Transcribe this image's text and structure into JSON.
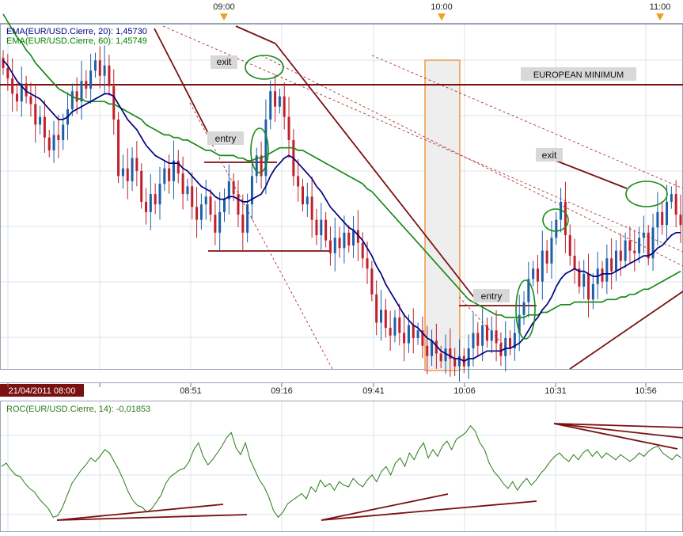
{
  "chart_data": [
    {
      "type": "candlestick",
      "title": "",
      "instrument": "EUR/USD",
      "top_time_labels": [
        "09:00",
        "10:00",
        "11:00"
      ],
      "x_tick_labels": [
        "08:51",
        "09:16",
        "09:41",
        "10:06",
        "10:31",
        "10:56"
      ],
      "date_label": "21/04/2011 08:00",
      "legend": [
        {
          "text": "EMA(EUR/USD.Cierre, 20): 1,45730",
          "color": "#000080"
        },
        {
          "text": "EMA(EUR/USD.Cierre, 60): 1,45749",
          "color": "#008000"
        }
      ],
      "level_label": "EUROPEAN MINIMUM",
      "annotations": [
        "exit",
        "entry",
        "entry",
        "exit"
      ],
      "colors": {
        "up": "#1c5fa8",
        "down": "#c0202a",
        "ema20": "#000080",
        "ema60": "#1a8a1a",
        "lines": "#7b1010",
        "marker": "#f0a020",
        "highlight": "#f08a30"
      },
      "grid": true,
      "closes": [
        1.4612,
        1.4608,
        1.4602,
        1.4599,
        1.4606,
        1.4601,
        1.4598,
        1.459,
        1.4593,
        1.4585,
        1.458,
        1.4586,
        1.4584,
        1.459,
        1.4596,
        1.4603,
        1.4599,
        1.4607,
        1.4604,
        1.4611,
        1.4615,
        1.4609,
        1.4613,
        1.4605,
        1.4592,
        1.457,
        1.4573,
        1.4568,
        1.4577,
        1.4572,
        1.456,
        1.4556,
        1.4563,
        1.4559,
        1.4567,
        1.4573,
        1.4568,
        1.4576,
        1.4571,
        1.4563,
        1.4566,
        1.4558,
        1.4553,
        1.4559,
        1.4562,
        1.4555,
        1.4548,
        1.4556,
        1.4561,
        1.4568,
        1.4563,
        1.4555,
        1.4548,
        1.4559,
        1.457,
        1.4578,
        1.457,
        1.4592,
        1.4603,
        1.4597,
        1.4601,
        1.4593,
        1.4584,
        1.457,
        1.4566,
        1.4559,
        1.4562,
        1.4553,
        1.4547,
        1.4553,
        1.4545,
        1.454,
        1.4546,
        1.4542,
        1.4548,
        1.4543,
        1.4549,
        1.4544,
        1.4538,
        1.4534,
        1.4524,
        1.4513,
        1.4518,
        1.4511,
        1.4508,
        1.4515,
        1.4509,
        1.4505,
        1.4512,
        1.4507,
        1.451,
        1.4504,
        1.45,
        1.4506,
        1.4501,
        1.4498,
        1.4503,
        1.4499,
        1.4496,
        1.45,
        1.4496,
        1.4503,
        1.4509,
        1.4504,
        1.4512,
        1.4506,
        1.451,
        1.4505,
        1.45,
        1.4507,
        1.4503,
        1.4509,
        1.4516,
        1.4521,
        1.453,
        1.4534,
        1.4529,
        1.4541,
        1.4536,
        1.4546,
        1.4553,
        1.456,
        1.4547,
        1.4539,
        1.4534,
        1.4527,
        1.4532,
        1.4522,
        1.4528,
        1.4534,
        1.4529,
        1.4538,
        1.4533,
        1.4541,
        1.4537,
        1.4545,
        1.4541,
        1.454,
        1.4546,
        1.4548,
        1.4538,
        1.455,
        1.4556,
        1.4551,
        1.456,
        1.4563,
        1.4555,
        1.4551
      ],
      "ema20": [
        1.4615,
        1.4613,
        1.461,
        1.4607,
        1.4605,
        1.4603,
        1.4602,
        1.4601,
        1.46,
        1.4598,
        1.4596,
        1.4594,
        1.4592,
        1.4592,
        1.4593,
        1.4595,
        1.4596,
        1.4597,
        1.4598,
        1.4599,
        1.46,
        1.4601,
        1.4602,
        1.4602,
        1.4601,
        1.4598,
        1.4595,
        1.4592,
        1.459,
        1.4588,
        1.4585,
        1.4582,
        1.458,
        1.4578,
        1.4577,
        1.4576,
        1.4575,
        1.4575,
        1.4575,
        1.4573,
        1.4572,
        1.457,
        1.4568,
        1.4566,
        1.4565,
        1.4564,
        1.4562,
        1.4561,
        1.4561,
        1.4562,
        1.4562,
        1.4561,
        1.456,
        1.456,
        1.4561,
        1.4562,
        1.4563,
        1.4566,
        1.457,
        1.4573,
        1.4575,
        1.4577,
        1.4578,
        1.4577,
        1.4575,
        1.4573,
        1.4571,
        1.4569,
        1.4566,
        1.4564,
        1.4561,
        1.4558,
        1.4556,
        1.4554,
        1.4552,
        1.455,
        1.4549,
        1.4547,
        1.4545,
        1.4542,
        1.4539,
        1.4535,
        1.4532,
        1.4528,
        1.4525,
        1.4522,
        1.4519,
        1.4516,
        1.4514,
        1.4512,
        1.4511,
        1.4509,
        1.4507,
        1.4506,
        1.4504,
        1.4502,
        1.4501,
        1.45,
        1.4499,
        1.4499,
        1.4498,
        1.4499,
        1.4499,
        1.45,
        1.4501,
        1.4502,
        1.4502,
        1.4502,
        1.4502,
        1.4503,
        1.4503,
        1.4504,
        1.4505,
        1.4507,
        1.451,
        1.4513,
        1.4515,
        1.4518,
        1.452,
        1.4523,
        1.4527,
        1.453,
        1.4532,
        1.4533,
        1.4534,
        1.4533,
        1.4533,
        1.4532,
        1.4531,
        1.4531,
        1.4532,
        1.4532,
        1.4532,
        1.4533,
        1.4534,
        1.4535,
        1.4536,
        1.4537,
        1.4538,
        1.4539,
        1.4539,
        1.454,
        1.4542,
        1.4543,
        1.4545,
        1.4547,
        1.4548,
        1.4548
      ],
      "ema60": [
        1.4633,
        1.463,
        1.4627,
        1.4624,
        1.4622,
        1.4619,
        1.4617,
        1.4614,
        1.4612,
        1.461,
        1.4608,
        1.4606,
        1.4604,
        1.4603,
        1.4602,
        1.4601,
        1.46,
        1.46,
        1.4599,
        1.4599,
        1.4599,
        1.4599,
        1.4599,
        1.4598,
        1.4598,
        1.4597,
        1.4596,
        1.4595,
        1.4594,
        1.4593,
        1.4592,
        1.459,
        1.4589,
        1.4588,
        1.4587,
        1.4586,
        1.4586,
        1.4585,
        1.4585,
        1.4584,
        1.4584,
        1.4583,
        1.4582,
        1.4581,
        1.458,
        1.458,
        1.4579,
        1.4578,
        1.4578,
        1.4578,
        1.4578,
        1.4577,
        1.4577,
        1.4576,
        1.4576,
        1.4577,
        1.4577,
        1.4578,
        1.4579,
        1.458,
        1.4581,
        1.4581,
        1.4581,
        1.4581,
        1.458,
        1.458,
        1.4579,
        1.4578,
        1.4577,
        1.4576,
        1.4575,
        1.4574,
        1.4573,
        1.4572,
        1.4571,
        1.457,
        1.4569,
        1.4568,
        1.4567,
        1.4565,
        1.4564,
        1.4562,
        1.456,
        1.4558,
        1.4556,
        1.4554,
        1.4552,
        1.455,
        1.4548,
        1.4546,
        1.4544,
        1.4542,
        1.454,
        1.4538,
        1.4536,
        1.4534,
        1.4532,
        1.453,
        1.4528,
        1.4526,
        1.4524,
        1.4522,
        1.4521,
        1.452,
        1.4519,
        1.4518,
        1.4517,
        1.4516,
        1.4516,
        1.4515,
        1.4515,
        1.4515,
        1.4515,
        1.4515,
        1.4516,
        1.4516,
        1.4516,
        1.4517,
        1.4517,
        1.4518,
        1.4519,
        1.452,
        1.452,
        1.452,
        1.4521,
        1.4521,
        1.4521,
        1.4521,
        1.4521,
        1.4521,
        1.4521,
        1.4522,
        1.4522,
        1.4522,
        1.4523,
        1.4523,
        1.4524,
        1.4524,
        1.4525,
        1.4526,
        1.4526,
        1.4527,
        1.4528,
        1.4529,
        1.453,
        1.4531,
        1.4532,
        1.4533
      ],
      "european_minimum": 1.4588,
      "ylim": [
        1.4495,
        1.4628
      ]
    },
    {
      "type": "line",
      "title": "ROC(EUR/USD.Cierre, 14): -0,01853",
      "color": "#2a7a1a",
      "values": [
        0.0,
        0.02,
        -0.02,
        -0.05,
        -0.06,
        -0.1,
        -0.13,
        -0.15,
        -0.19,
        -0.22,
        -0.25,
        -0.3,
        -0.29,
        -0.24,
        -0.17,
        -0.1,
        -0.06,
        -0.02,
        0.01,
        0.05,
        0.03,
        0.06,
        0.1,
        0.08,
        0.03,
        -0.02,
        -0.08,
        -0.15,
        -0.2,
        -0.23,
        -0.24,
        -0.27,
        -0.25,
        -0.21,
        -0.17,
        -0.1,
        -0.06,
        -0.04,
        -0.02,
        -0.01,
        0.03,
        0.1,
        0.14,
        0.06,
        0.01,
        0.04,
        0.08,
        0.12,
        0.17,
        0.2,
        0.11,
        0.07,
        0.14,
        0.04,
        -0.02,
        -0.08,
        -0.12,
        -0.18,
        -0.26,
        -0.3,
        -0.27,
        -0.22,
        -0.2,
        -0.18,
        -0.16,
        -0.19,
        -0.12,
        -0.15,
        -0.08,
        -0.12,
        -0.1,
        -0.14,
        -0.09,
        -0.11,
        -0.12,
        -0.07,
        -0.1,
        -0.12,
        -0.08,
        -0.05,
        -0.09,
        -0.03,
        0.0,
        -0.05,
        0.02,
        0.05,
        0.0,
        0.08,
        0.04,
        0.1,
        0.14,
        0.05,
        0.1,
        0.06,
        0.12,
        0.15,
        0.1,
        0.16,
        0.18,
        0.2,
        0.24,
        0.21,
        0.14,
        0.1,
        0.02,
        -0.03,
        -0.06,
        -0.1,
        -0.13,
        -0.09,
        -0.14,
        -0.1,
        -0.07,
        -0.11,
        -0.08,
        -0.04,
        -0.01,
        0.03,
        0.06,
        0.08,
        0.05,
        0.03,
        0.07,
        0.04,
        0.08,
        0.1,
        0.06,
        0.09,
        0.05,
        0.08,
        0.06,
        0.04,
        0.07,
        0.05,
        0.03,
        0.05,
        0.08,
        0.06,
        0.09,
        0.11,
        0.12,
        0.08,
        0.06,
        0.04,
        0.07,
        0.05
      ],
      "ylim": [
        -0.34,
        0.3
      ]
    }
  ]
}
